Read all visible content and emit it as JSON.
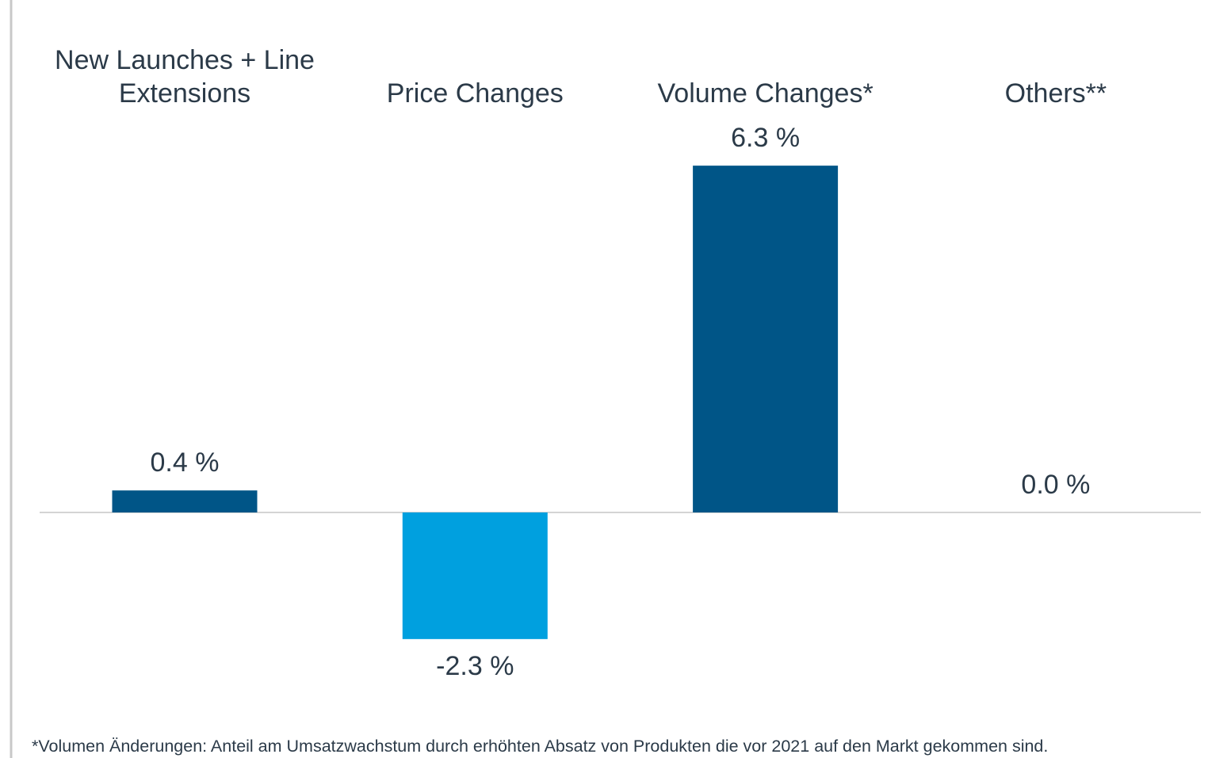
{
  "chart_data": {
    "type": "bar",
    "categories": [
      "New Launches + Line Extensions",
      "Price Changes",
      "Volume Changes*",
      "Others**"
    ],
    "values": [
      0.4,
      -2.3,
      6.3,
      0.0
    ],
    "value_labels": [
      "0.4 %",
      "-2.3 %",
      "6.3 %",
      "0.0 %"
    ],
    "colors": [
      "#005587",
      "#00a0df",
      "#005587",
      "#005587"
    ],
    "ylim": [
      -3,
      7
    ],
    "note": "*Volumen Änderungen: Anteil am Umsatzwachstum durch erhöhten Absatz von Produkten die vor 2021 auf den Markt gekommen sind."
  }
}
